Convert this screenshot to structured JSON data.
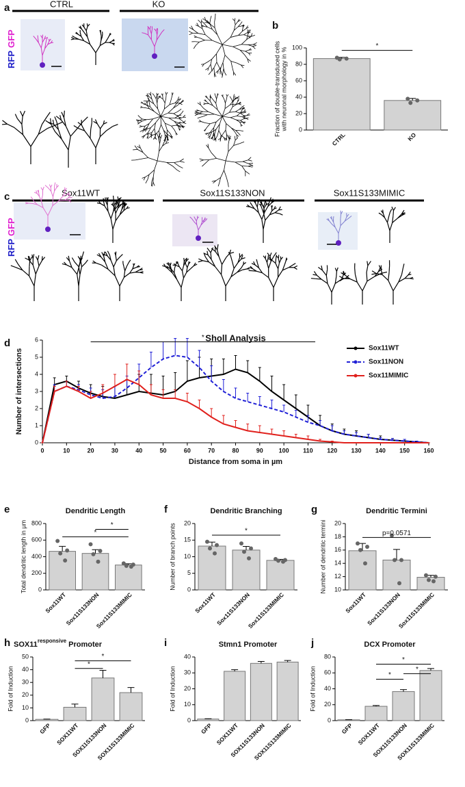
{
  "figure_a": {
    "panel": "a",
    "groups": [
      "CTRL",
      "KO"
    ],
    "stain": [
      "RFP",
      "GFP"
    ]
  },
  "figure_c": {
    "panel": "c",
    "groups": [
      "Sox11WT",
      "Sox11S133NON",
      "Sox11S133MIMIC"
    ],
    "stain": [
      "RFP",
      "GFP"
    ]
  },
  "chart_data": [
    {
      "type": "bar",
      "panel": "b",
      "categories": [
        "CTRL",
        "KO"
      ],
      "values": [
        87,
        36
      ],
      "errors": [
        1.5,
        2.5
      ],
      "points": [
        [
          88,
          87,
          86
        ],
        [
          38,
          36,
          33
        ]
      ],
      "color": "#d3d3d3",
      "ylabel": [
        "Fraction of double-transduced cells",
        "with neuronal morphology in %"
      ],
      "ylim": [
        0,
        100
      ],
      "yticks": [
        0,
        20,
        40,
        60,
        80,
        100
      ],
      "significance": [
        {
          "from": 0,
          "to": 1,
          "y": 97,
          "label": "*"
        }
      ]
    },
    {
      "type": "line",
      "panel": "d",
      "title": "Sholl Analysis",
      "x": [
        0,
        5,
        10,
        15,
        20,
        25,
        30,
        35,
        40,
        45,
        50,
        55,
        60,
        65,
        70,
        75,
        80,
        85,
        90,
        95,
        100,
        105,
        110,
        115,
        120,
        125,
        130,
        135,
        140,
        145,
        150,
        155,
        160
      ],
      "series": [
        {
          "name": "Sox11WT",
          "color": "#000000",
          "dashed": false,
          "values": [
            0,
            3.4,
            3.6,
            3.2,
            2.9,
            2.7,
            2.6,
            2.8,
            3.0,
            2.9,
            2.8,
            3.0,
            3.6,
            3.8,
            3.9,
            4.0,
            4.3,
            4.1,
            3.6,
            3.0,
            2.5,
            2.0,
            1.5,
            1.0,
            0.7,
            0.5,
            0.4,
            0.3,
            0.2,
            0.15,
            0.1,
            0.05,
            0
          ],
          "errors": [
            0,
            0.4,
            0.3,
            0.4,
            0.5,
            0.6,
            0.7,
            0.9,
            1.0,
            1.1,
            1.1,
            1.1,
            1.2,
            1.2,
            1.0,
            0.9,
            0.8,
            0.7,
            0.8,
            0.9,
            0.9,
            0.8,
            0.7,
            0.6,
            0.4,
            0.3,
            0.3,
            0.2,
            0.2,
            0.1,
            0.1,
            0.05,
            0
          ]
        },
        {
          "name": "Sox11NON",
          "color": "#1f1fd6",
          "dashed": true,
          "values": [
            0,
            3.0,
            3.3,
            3.1,
            2.8,
            2.6,
            2.7,
            3.2,
            3.8,
            4.4,
            4.9,
            5.1,
            5.0,
            4.4,
            3.6,
            3.0,
            2.6,
            2.4,
            2.2,
            2.0,
            1.8,
            1.5,
            1.2,
            1.0,
            0.7,
            0.5,
            0.4,
            0.3,
            0.2,
            0.15,
            0.1,
            0.05,
            0
          ],
          "errors": [
            0,
            0.4,
            0.3,
            0.3,
            0.4,
            0.5,
            0.6,
            0.7,
            0.8,
            0.9,
            1.0,
            1.0,
            1.1,
            1.0,
            0.9,
            0.7,
            0.6,
            0.5,
            0.5,
            0.5,
            0.4,
            0.4,
            0.4,
            0.3,
            0.3,
            0.2,
            0.2,
            0.2,
            0.1,
            0.1,
            0.1,
            0.05,
            0
          ]
        },
        {
          "name": "Sox11MIMIC",
          "color": "#e0201c",
          "dashed": false,
          "values": [
            0,
            3.0,
            3.3,
            3.0,
            2.6,
            2.9,
            3.3,
            3.7,
            3.4,
            2.8,
            2.6,
            2.6,
            2.4,
            2.0,
            1.5,
            1.1,
            0.9,
            0.7,
            0.6,
            0.5,
            0.4,
            0.3,
            0.2,
            0.1,
            0.05,
            0,
            0,
            0,
            0,
            0,
            0,
            0,
            0
          ],
          "errors": [
            0,
            0.3,
            0.3,
            0.3,
            0.4,
            0.5,
            0.7,
            0.9,
            0.8,
            0.6,
            0.5,
            0.5,
            0.5,
            0.5,
            0.5,
            0.5,
            0.4,
            0.4,
            0.4,
            0.3,
            0.3,
            0.2,
            0.2,
            0.1,
            0.05,
            0,
            0,
            0,
            0,
            0,
            0,
            0,
            0
          ]
        }
      ],
      "xlabel": "Distance from soma in µm",
      "ylabel": "Number of intersections",
      "xlim": [
        0,
        160
      ],
      "xticks": [
        0,
        10,
        20,
        30,
        40,
        50,
        60,
        70,
        80,
        90,
        100,
        110,
        120,
        130,
        140,
        150,
        160
      ],
      "ylim": [
        0,
        6
      ],
      "yticks": [
        0,
        1,
        2,
        3,
        4,
        5,
        6
      ],
      "legend": "top-right",
      "significance": [
        {
          "from": 20,
          "to": 113,
          "y": 5.9,
          "label": "*"
        }
      ]
    },
    {
      "type": "bar",
      "panel": "e",
      "title": "Dendritic Length",
      "categories": [
        "Sox11WT",
        "Sox11S133NON",
        "Sox11S133MIMIC"
      ],
      "values": [
        465,
        440,
        300
      ],
      "errors": [
        60,
        45,
        15
      ],
      "points": [
        [
          590,
          475,
          440,
          355
        ],
        [
          550,
          470,
          430,
          340
        ],
        [
          320,
          305,
          290,
          280
        ]
      ],
      "color": "#d3d3d3",
      "ylabel": [
        "Total dendritic length in µm"
      ],
      "ylim": [
        0,
        800
      ],
      "yticks": [
        0,
        200,
        400,
        600,
        800
      ],
      "significance": [
        {
          "from": 0,
          "to": 2,
          "y": 640,
          "label": "*"
        },
        {
          "from": 1,
          "to": 2,
          "y": 730,
          "label": "*"
        }
      ]
    },
    {
      "type": "bar",
      "panel": "f",
      "title": "Dendritic Branching",
      "categories": [
        "Sox11WT",
        "Sox11S133NON",
        "Sox11S133MIMIC"
      ],
      "values": [
        13.2,
        12.0,
        8.9
      ],
      "errors": [
        1.2,
        1.1,
        0.3
      ],
      "points": [
        [
          14.5,
          13.5,
          12.5,
          11
        ],
        [
          14,
          12.5,
          11.5,
          9.5
        ],
        [
          9.3,
          9,
          8.8,
          8.5
        ]
      ],
      "color": "#d3d3d3",
      "ylabel": [
        "Number of branch points"
      ],
      "ylim": [
        0,
        20
      ],
      "yticks": [
        0,
        5,
        10,
        15,
        20
      ],
      "significance": [
        {
          "from": 0,
          "to": 2,
          "y": 16.5,
          "label": "*"
        }
      ]
    },
    {
      "type": "bar",
      "panel": "g",
      "title": "Dendritic Termini",
      "categories": [
        "Sox11WT",
        "Sox11S133NON",
        "Sox11S133MIMIC"
      ],
      "values": [
        15.9,
        14.5,
        11.9
      ],
      "errors": [
        1.1,
        1.6,
        0.3
      ],
      "points": [
        [
          17,
          16.5,
          16,
          14
        ],
        [
          18.2,
          14.5,
          14.5,
          11
        ],
        [
          12.2,
          12,
          11.5,
          11.3
        ]
      ],
      "color": "#d3d3d3",
      "ylabel": [
        "Number of dendritic termini"
      ],
      "ylim": [
        10,
        20
      ],
      "yticks": [
        10,
        12,
        14,
        16,
        18,
        20
      ],
      "significance": [
        {
          "from": 0,
          "to": 2,
          "y": 17.9,
          "label": "p=0.0571"
        }
      ]
    },
    {
      "type": "bar",
      "panel": "h",
      "title": "SOX11",
      "title_superscript": "responsive",
      "title_suffix": "Promoter",
      "categories": [
        "GFP",
        "SOX11WT",
        "SOX11S133NON",
        "SOX11S133MIMIC"
      ],
      "values": [
        1,
        10.5,
        33.5,
        22
      ],
      "errors": [
        0.2,
        2.5,
        6,
        4
      ],
      "color": "#d3d3d3",
      "ylabel": [
        "Fold of Induction"
      ],
      "ylim": [
        0,
        50
      ],
      "yticks": [
        0,
        10,
        20,
        30,
        40,
        50
      ],
      "significance": [
        {
          "from": 1,
          "to": 2,
          "y": 41,
          "label": "*"
        },
        {
          "from": 1,
          "to": 3,
          "y": 47,
          "label": "*"
        }
      ]
    },
    {
      "type": "bar",
      "panel": "i",
      "title": "Stmn1 Promoter",
      "categories": [
        "GFP",
        "SOX11WT",
        "SOX11S133NON",
        "SOX11S133MIMIC"
      ],
      "values": [
        1,
        31,
        36,
        36.8
      ],
      "errors": [
        0.2,
        1,
        1.2,
        1
      ],
      "color": "#d3d3d3",
      "ylabel": [
        "Fold of Induction"
      ],
      "ylim": [
        0,
        40
      ],
      "yticks": [
        0,
        10,
        20,
        30,
        40
      ],
      "significance": []
    },
    {
      "type": "bar",
      "panel": "j",
      "title": "DCX Promoter",
      "categories": [
        "GFP",
        "SOX11WT",
        "SOX11S133NON",
        "SOX11S133MIMIC"
      ],
      "values": [
        1,
        18,
        36.5,
        63
      ],
      "errors": [
        0.2,
        1,
        2.5,
        2.5
      ],
      "color": "#d3d3d3",
      "ylabel": [
        "Fold of Induction"
      ],
      "ylim": [
        0,
        80
      ],
      "yticks": [
        0,
        20,
        40,
        60,
        80
      ],
      "significance": [
        {
          "from": 1,
          "to": 2,
          "y": 52,
          "label": "*"
        },
        {
          "from": 2,
          "to": 3,
          "y": 59,
          "label": "*"
        },
        {
          "from": 1,
          "to": 3,
          "y": 71,
          "label": "*"
        }
      ]
    }
  ]
}
